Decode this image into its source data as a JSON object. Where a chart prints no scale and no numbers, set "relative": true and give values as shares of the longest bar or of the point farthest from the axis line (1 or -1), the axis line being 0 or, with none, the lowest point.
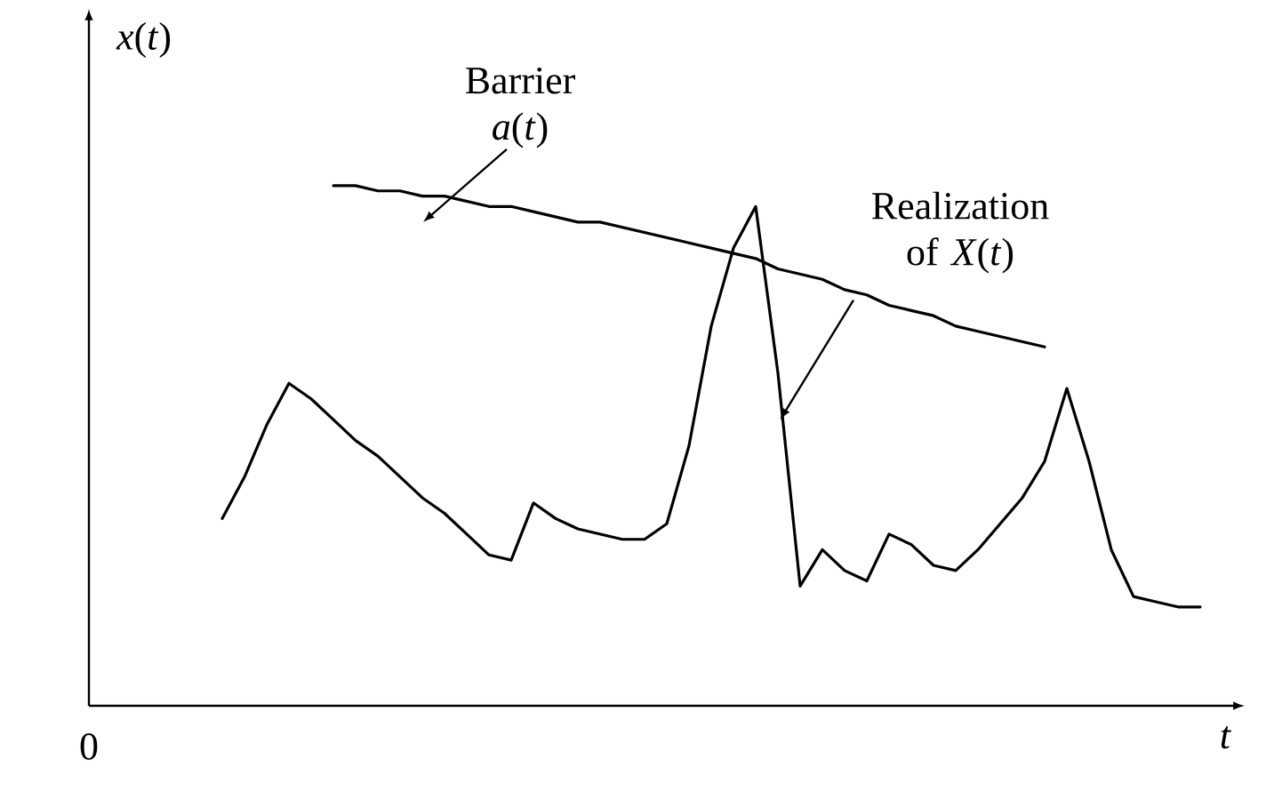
{
  "chart_data": {
    "type": "line",
    "relative": true,
    "xlabel": "*t*",
    "ylabel": "*x*(*t*)",
    "categories": [
      null,
      null,
      null,
      null,
      null,
      null,
      null,
      null,
      null,
      null,
      null,
      null,
      null,
      null,
      null,
      null,
      null,
      null,
      null,
      null,
      null,
      null,
      null,
      null,
      null,
      null,
      null,
      null,
      null,
      null,
      null,
      null,
      null,
      null,
      null,
      null,
      null,
      null,
      null,
      null,
      null,
      null,
      null,
      null,
      null
    ],
    "series": [
      {
        "color": "#000000",
        "values": [
          0.36,
          0.44,
          0.54,
          0.62,
          0.59,
          0.55,
          0.51,
          0.48,
          0.44,
          0.4,
          0.37,
          0.33,
          0.29,
          0.28,
          0.39,
          0.36,
          0.34,
          0.33,
          0.32,
          0.32,
          0.35,
          0.5,
          0.73,
          0.88,
          0.96,
          0.64,
          0.23,
          0.3,
          0.26,
          0.24,
          0.33,
          0.31,
          0.27,
          0.26,
          0.3,
          0.35,
          0.4,
          0.47,
          0.61,
          0.47,
          0.3,
          0.21,
          0.2,
          0.19,
          0.19
        ]
      },
      {
        "color": "#000000",
        "values": [
          null,
          null,
          null,
          null,
          null,
          1.0,
          1.0,
          0.99,
          0.99,
          0.98,
          0.98,
          0.97,
          0.96,
          0.96,
          0.95,
          0.94,
          0.93,
          0.93,
          0.92,
          0.91,
          0.9,
          0.89,
          0.88,
          0.87,
          0.86,
          0.84,
          0.83,
          0.82,
          0.8,
          0.79,
          0.77,
          0.76,
          0.75,
          0.73,
          0.72,
          0.71,
          0.7,
          0.69,
          null,
          null,
          null,
          null,
          null,
          null,
          null
        ]
      }
    ],
    "annotations": [
      "Barrier *a*(*t*)",
      "Realization of *X*(*t*)",
      "0"
    ]
  }
}
